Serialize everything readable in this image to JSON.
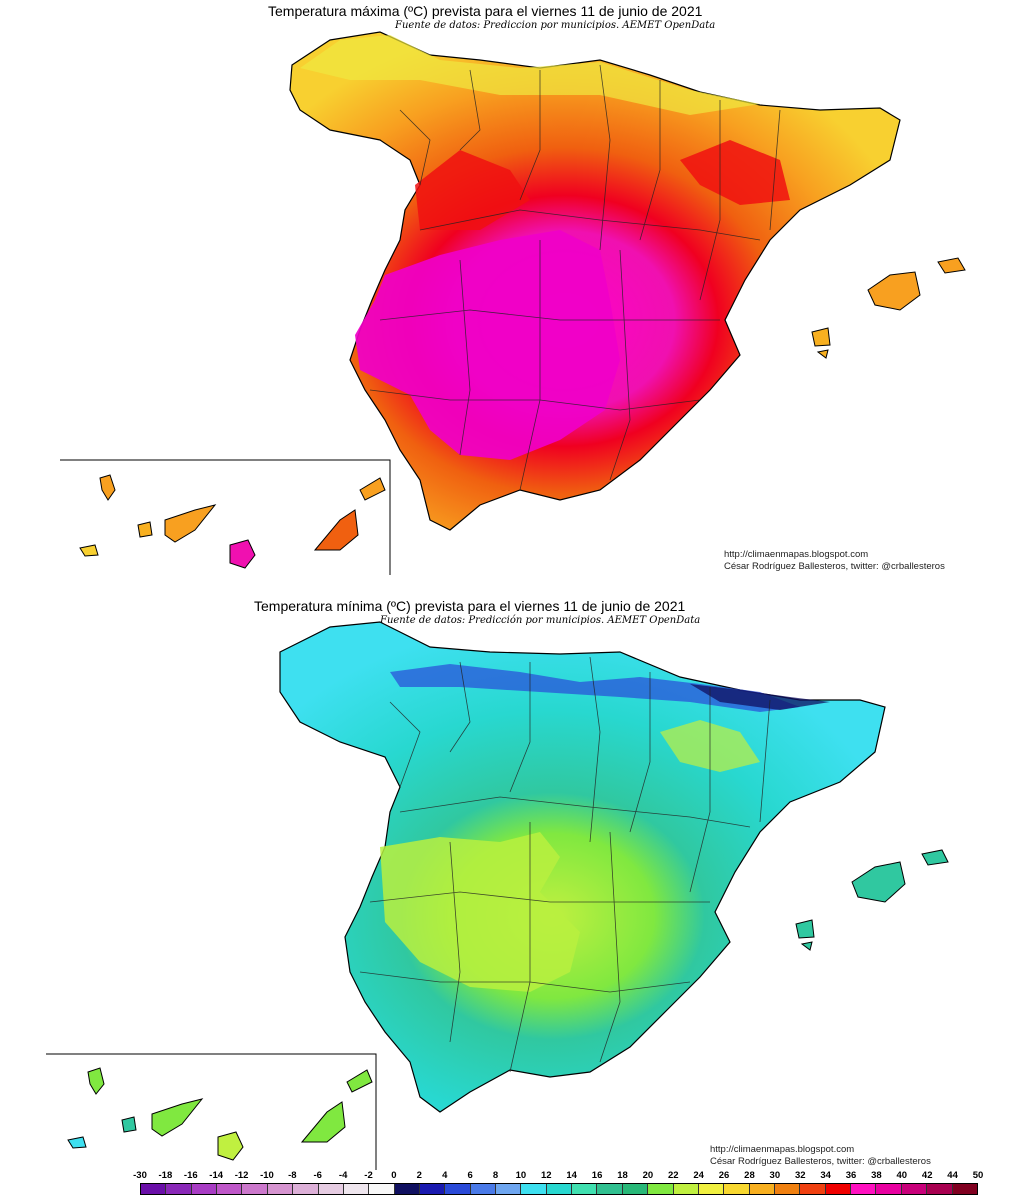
{
  "maps": {
    "max": {
      "title": "Temperatura máxima (ºC) prevista para el viernes 11 de junio de 2021",
      "subtitle": "Fuente de datos: Prediccion por municipios. AEMET OpenData",
      "credit_url": "http://climaenmapas.blogspot.com",
      "credit_author": "César Rodríguez Ballesteros, twitter: @crballesteros"
    },
    "min": {
      "title": "Temperatura mínima (ºC) prevista para el viernes 11 de junio de 2021",
      "subtitle": "Fuente de datos: Predicción por municipios. AEMET OpenData",
      "credit_url": "http://climaenmapas.blogspot.com",
      "credit_author": "César Rodríguez Ballesteros, twitter: @crballesteros"
    }
  },
  "legend": {
    "ticks": [
      "-30",
      "-18",
      "-16",
      "-14",
      "-12",
      "-10",
      "-8",
      "-6",
      "-4",
      "-2",
      "0",
      "2",
      "4",
      "6",
      "8",
      "10",
      "12",
      "14",
      "16",
      "18",
      "20",
      "22",
      "24",
      "26",
      "28",
      "30",
      "32",
      "34",
      "36",
      "38",
      "40",
      "42",
      "44",
      "50"
    ],
    "colors": [
      "#6a0fa8",
      "#8a28b8",
      "#a83cc4",
      "#bf57c9",
      "#cc78cc",
      "#d694d0",
      "#ddb0d8",
      "#e6cce2",
      "#efe6ee",
      "#f8f8f8",
      "#101060",
      "#1a1ab0",
      "#2a4ad8",
      "#4a7ae8",
      "#6ea6f0",
      "#3ee0f0",
      "#28d8d0",
      "#40e0b0",
      "#30c090",
      "#28b878",
      "#80e840",
      "#c0f040",
      "#f0f040",
      "#f8d830",
      "#f8b020",
      "#f08010",
      "#f04010",
      "#f00000",
      "#ff10c0",
      "#e800a0",
      "#c8007a",
      "#a80050",
      "#800020"
    ]
  }
}
